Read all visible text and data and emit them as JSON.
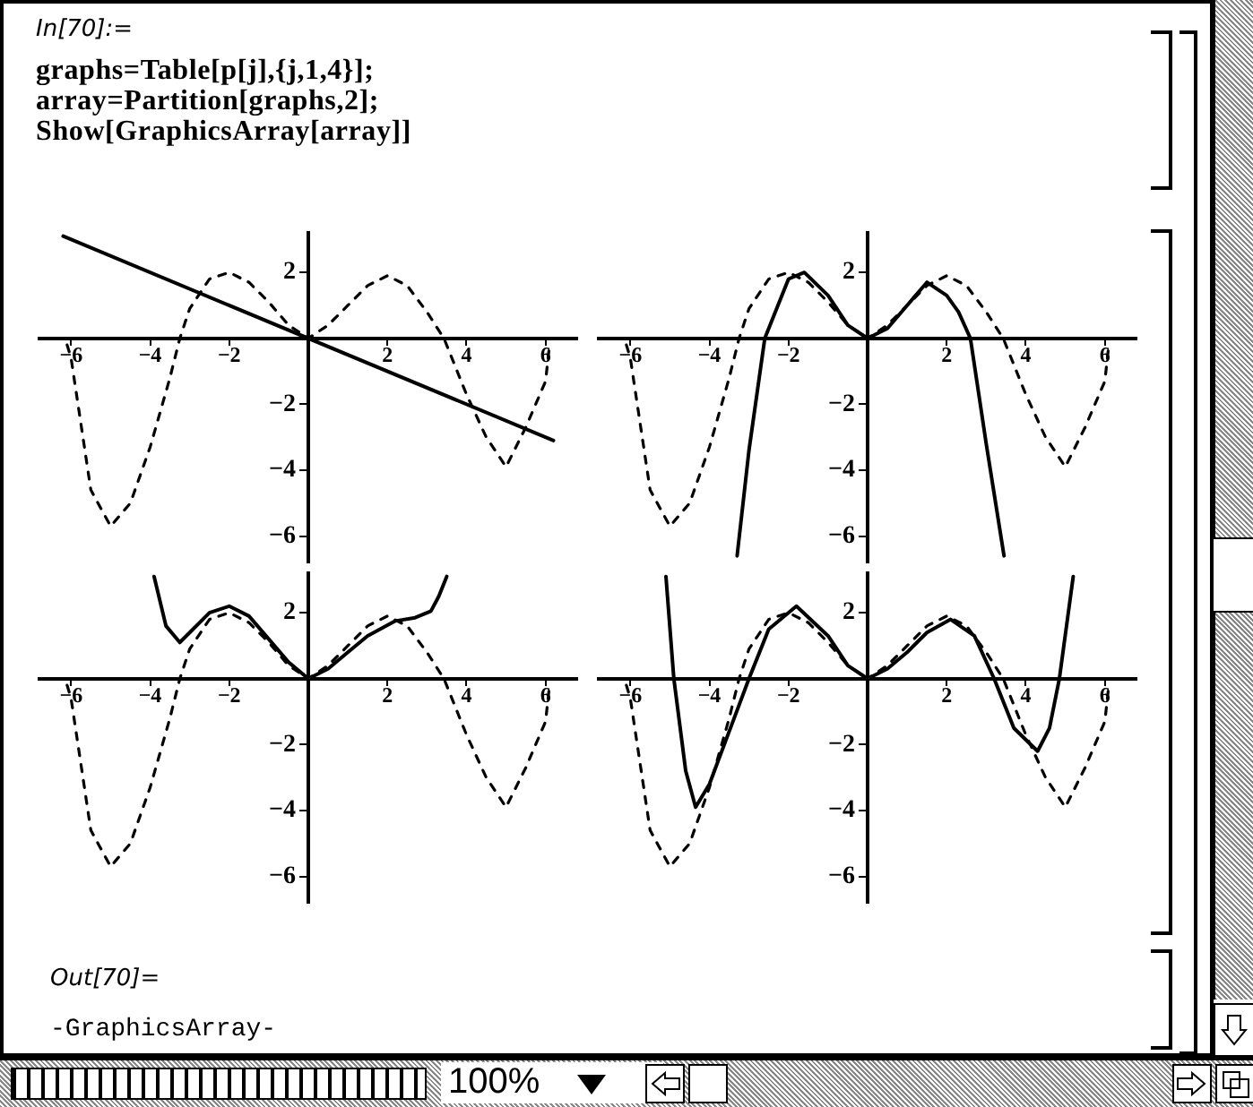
{
  "chart_data": [
    {
      "type": "other",
      "annotations": [
        "In[70]:=",
        "graphs=Table[p[j],{j,1,4}];",
        "array=Partition[graphs,2];",
        "Show[GraphicsArray[array]]"
      ]
    },
    {
      "type": "line",
      "xlim": [
        -6.8,
        6.8
      ],
      "ylim": [
        -6.8,
        3.2
      ],
      "xticks": [
        -6,
        -4,
        -2,
        2,
        4,
        6
      ],
      "yticks": [
        -6,
        -4,
        -2,
        2
      ],
      "grid": false,
      "legend": false,
      "marker": "none",
      "series": [
        {
          "color": "#000000",
          "line_style": "dashed",
          "x": [
            -6.1,
            -6,
            -5.5,
            -5,
            -4.5,
            -4,
            -3.5,
            -3.25,
            -3,
            -2.5,
            -2,
            -1.5,
            -1,
            -0.5,
            0,
            0.5,
            1,
            1.5,
            2,
            2.5,
            3,
            3.43,
            4,
            4.5,
            5,
            5.5,
            6,
            6.1
          ],
          "values": [
            -0.2,
            -0.6,
            -4.6,
            -5.7,
            -5.0,
            -3.3,
            -1.2,
            0,
            0.9,
            1.8,
            2.0,
            1.7,
            1.1,
            0.4,
            0,
            0.4,
            1.0,
            1.6,
            1.9,
            1.6,
            0.8,
            0,
            -1.7,
            -3.0,
            -3.9,
            -2.7,
            -1.3,
            -0.2
          ]
        },
        {
          "color": "#000000",
          "line_style": "solid",
          "x": [
            -6.2,
            6.2
          ],
          "values": [
            3.1,
            -3.1
          ]
        }
      ]
    },
    {
      "type": "line",
      "xlim": [
        -6.8,
        6.8
      ],
      "ylim": [
        -6.8,
        3.2
      ],
      "xticks": [
        -6,
        -4,
        -2,
        2,
        4,
        6
      ],
      "yticks": [
        -6,
        -4,
        -2,
        2
      ],
      "grid": false,
      "legend": false,
      "marker": "none",
      "series": [
        {
          "color": "#000000",
          "line_style": "dashed",
          "x": [
            -6.1,
            -6,
            -5.5,
            -5,
            -4.5,
            -4,
            -3.5,
            -3.25,
            -3,
            -2.5,
            -2,
            -1.5,
            -1,
            -0.5,
            0,
            0.5,
            1,
            1.5,
            2,
            2.5,
            3,
            3.43,
            4,
            4.5,
            5,
            5.5,
            6,
            6.1
          ],
          "values": [
            -0.2,
            -0.6,
            -4.6,
            -5.7,
            -5.0,
            -3.3,
            -1.2,
            0,
            0.9,
            1.8,
            2.0,
            1.7,
            1.1,
            0.4,
            0,
            0.4,
            1.0,
            1.6,
            1.9,
            1.6,
            0.8,
            0,
            -1.7,
            -3.0,
            -3.9,
            -2.7,
            -1.3,
            -0.2
          ]
        },
        {
          "color": "#000000",
          "line_style": "solid",
          "x": [
            -3.3,
            -3,
            -2.6,
            -2,
            -1.6,
            -1,
            -0.5,
            0,
            0.5,
            1,
            1.5,
            2,
            2.3,
            2.6,
            3,
            3.45
          ],
          "values": [
            -6.6,
            -3.4,
            0,
            1.8,
            2.0,
            1.3,
            0.4,
            0,
            0.3,
            1.0,
            1.7,
            1.3,
            0.8,
            0,
            -3.2,
            -6.6
          ]
        }
      ]
    },
    {
      "type": "line",
      "xlim": [
        -6.8,
        6.8
      ],
      "ylim": [
        -6.8,
        3.2
      ],
      "xticks": [
        -6,
        -4,
        -2,
        2,
        4,
        6
      ],
      "yticks": [
        -6,
        -4,
        -2,
        2
      ],
      "grid": false,
      "legend": false,
      "marker": "none",
      "series": [
        {
          "color": "#000000",
          "line_style": "dashed",
          "x": [
            -6.1,
            -6,
            -5.5,
            -5,
            -4.5,
            -4,
            -3.5,
            -3.25,
            -3,
            -2.5,
            -2,
            -1.5,
            -1,
            -0.5,
            0,
            0.5,
            1,
            1.5,
            2,
            2.5,
            3,
            3.43,
            4,
            4.5,
            5,
            5.5,
            6,
            6.1
          ],
          "values": [
            -0.2,
            -0.6,
            -4.6,
            -5.7,
            -5.0,
            -3.3,
            -1.2,
            0,
            0.9,
            1.8,
            2.0,
            1.7,
            1.1,
            0.4,
            0,
            0.4,
            1.0,
            1.6,
            1.9,
            1.6,
            0.8,
            0,
            -1.7,
            -3.0,
            -3.9,
            -2.7,
            -1.3,
            -0.2
          ]
        },
        {
          "color": "#000000",
          "line_style": "solid",
          "x": [
            -3.9,
            -3.6,
            -3.25,
            -3,
            -2.5,
            -2,
            -1.5,
            -1,
            -0.5,
            0,
            0.5,
            1,
            1.5,
            2.2,
            2.7,
            3.1,
            3.3,
            3.5
          ],
          "values": [
            3.1,
            1.6,
            1.1,
            1.4,
            2.0,
            2.2,
            1.9,
            1.2,
            0.5,
            0,
            0.3,
            0.8,
            1.3,
            1.75,
            1.85,
            2.05,
            2.5,
            3.1
          ]
        }
      ]
    },
    {
      "type": "line",
      "xlim": [
        -6.8,
        6.8
      ],
      "ylim": [
        -6.8,
        3.2
      ],
      "xticks": [
        -6,
        -4,
        -2,
        2,
        4,
        6
      ],
      "yticks": [
        -6,
        -4,
        -2,
        2
      ],
      "grid": false,
      "legend": false,
      "marker": "none",
      "series": [
        {
          "color": "#000000",
          "line_style": "dashed",
          "x": [
            -6.1,
            -6,
            -5.5,
            -5,
            -4.5,
            -4,
            -3.5,
            -3.25,
            -3,
            -2.5,
            -2,
            -1.5,
            -1,
            -0.5,
            0,
            0.5,
            1,
            1.5,
            2,
            2.5,
            3,
            3.43,
            4,
            4.5,
            5,
            5.5,
            6,
            6.1
          ],
          "values": [
            -0.2,
            -0.6,
            -4.6,
            -5.7,
            -5.0,
            -3.3,
            -1.2,
            0,
            0.9,
            1.8,
            2.0,
            1.7,
            1.1,
            0.4,
            0,
            0.4,
            1.0,
            1.6,
            1.9,
            1.6,
            0.8,
            0,
            -1.7,
            -3.0,
            -3.9,
            -2.7,
            -1.3,
            -0.2
          ]
        },
        {
          "color": "#000000",
          "line_style": "solid",
          "x": [
            -5.1,
            -4.9,
            -4.6,
            -4.35,
            -4,
            -3.5,
            -3,
            -2.5,
            -1.8,
            -1,
            -0.5,
            0,
            0.5,
            1,
            1.5,
            2.1,
            2.7,
            3.2,
            3.7,
            4.3,
            4.6,
            4.85,
            5.2
          ],
          "values": [
            3.1,
            0,
            -2.8,
            -3.9,
            -3.2,
            -1.6,
            0,
            1.5,
            2.2,
            1.3,
            0.4,
            0,
            0.3,
            0.8,
            1.4,
            1.8,
            1.3,
            0,
            -1.5,
            -2.2,
            -1.5,
            0,
            3.1
          ]
        }
      ]
    },
    {
      "type": "other",
      "annotations": [
        "Out[70]=",
        "-GraphicsArray-",
        "100%"
      ]
    }
  ]
}
